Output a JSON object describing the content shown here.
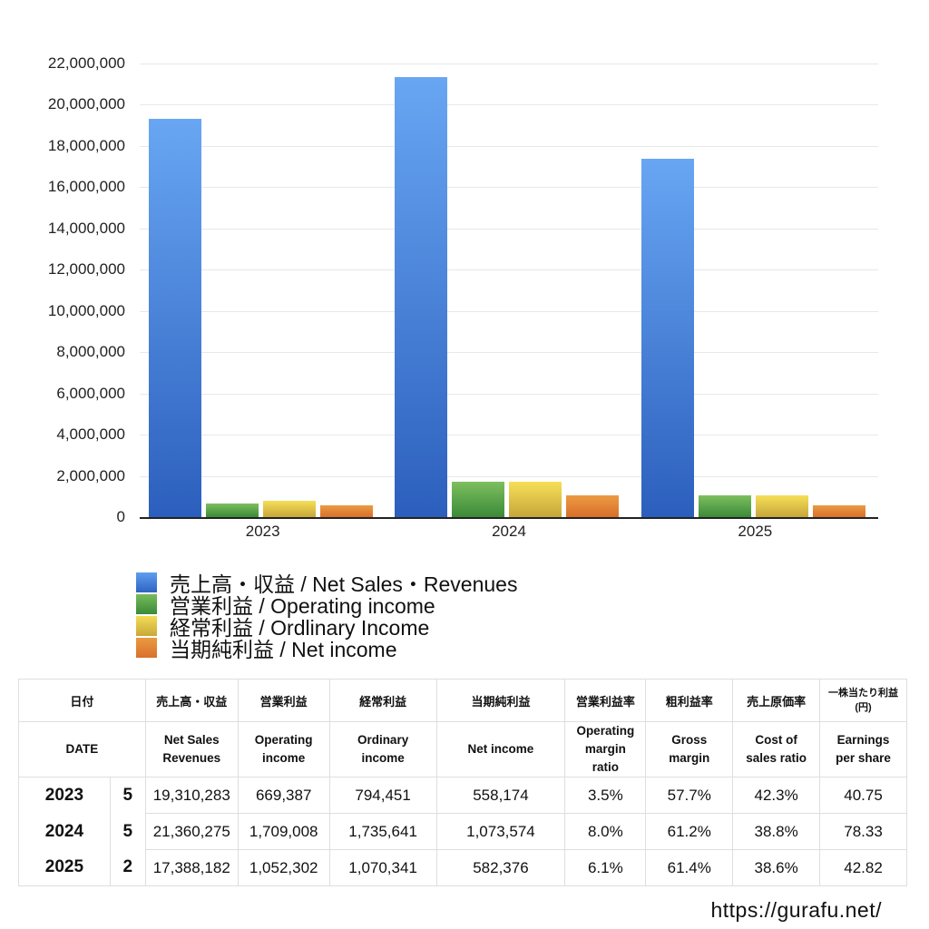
{
  "chart_data": {
    "type": "bar",
    "title": "",
    "xlabel": "",
    "ylabel": "",
    "ylim": [
      0,
      22000000
    ],
    "grid": true,
    "legend_position": "bottom-left",
    "categories": [
      "2023",
      "2024",
      "2025"
    ],
    "y_ticks": [
      "0",
      "2,000,000",
      "4,000,000",
      "6,000,000",
      "8,000,000",
      "10,000,000",
      "12,000,000",
      "14,000,000",
      "16,000,000",
      "18,000,000",
      "20,000,000",
      "22,000,000"
    ],
    "series": [
      {
        "name": "売上高・収益 / Net Sales・Revenues",
        "color": "#3d7ad8",
        "values": [
          19310283,
          21360275,
          17388182
        ]
      },
      {
        "name": "営業利益 / Operating income",
        "color": "#4a9a44",
        "values": [
          669387,
          1709008,
          1052302
        ]
      },
      {
        "name": "経常利益 / Ordlinary Income",
        "color": "#e2c23e",
        "values": [
          794451,
          1735641,
          1070341
        ]
      },
      {
        "name": "当期純利益 / Net income",
        "color": "#e07d2e",
        "values": [
          558174,
          1073574,
          582376
        ]
      }
    ]
  },
  "legend": [
    {
      "label": "売上高・収益 / Net Sales・Revenues"
    },
    {
      "label": "営業利益 / Operating income"
    },
    {
      "label": "経常利益 / Ordlinary Income"
    },
    {
      "label": "当期純利益 / Net income"
    }
  ],
  "table": {
    "header_jp": [
      "日付",
      "売上高・収益",
      "営業利益",
      "経常利益",
      "当期純利益",
      "営業利益率",
      "粗利益率",
      "売上原価率",
      "一株当たり利益\n(円)"
    ],
    "header_en": [
      "DATE",
      "Net Sales\nRevenues",
      "Operating\nincome",
      "Ordinary\nincome",
      "Net income",
      "Operating\nmargin\nratio",
      "Gross\nmargin",
      "Cost of\nsales ratio",
      "Earnings\nper share"
    ],
    "rows": [
      {
        "year": "2023",
        "month": "5",
        "sales": "19,310,283",
        "operating": "669,387",
        "ordinary": "794,451",
        "net": "558,174",
        "op_margin": "3.5%",
        "gross_margin": "57.7%",
        "cost_ratio": "42.3%",
        "eps": "40.75"
      },
      {
        "year": "2024",
        "month": "5",
        "sales": "21,360,275",
        "operating": "1,709,008",
        "ordinary": "1,735,641",
        "net": "1,073,574",
        "op_margin": "8.0%",
        "gross_margin": "61.2%",
        "cost_ratio": "38.8%",
        "eps": "78.33"
      },
      {
        "year": "2025",
        "month": "2",
        "sales": "17,388,182",
        "operating": "1,052,302",
        "ordinary": "1,070,341",
        "net": "582,376",
        "op_margin": "6.1%",
        "gross_margin": "61.4%",
        "cost_ratio": "38.6%",
        "eps": "42.82"
      }
    ]
  },
  "footer": {
    "url_text": "https://gurafu.net/"
  }
}
